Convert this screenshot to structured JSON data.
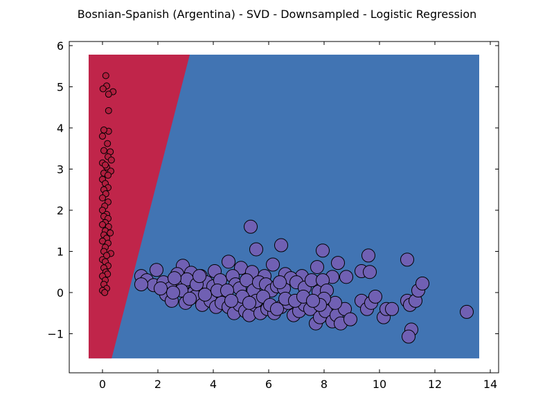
{
  "chart_data": {
    "type": "scatter",
    "title": "Bosnian-Spanish (Argentina) - SVD - Downsampled - Logistic Regression",
    "xlabel": "",
    "ylabel": "",
    "xlim": [
      -1.2,
      14.3
    ],
    "ylim": [
      -1.95,
      6.1
    ],
    "xticks": [
      0,
      2,
      4,
      6,
      8,
      10,
      12,
      14
    ],
    "yticks": [
      -1,
      0,
      1,
      2,
      3,
      4,
      5,
      6
    ],
    "ytick_labels": [
      "−1",
      "0",
      "1",
      "2",
      "3",
      "4",
      "5",
      "6"
    ],
    "grid": false,
    "legend": "none",
    "colors": {
      "region_class_a": "#c0254a",
      "region_class_b": "#4174b3",
      "points_class_a": "#b01e3e",
      "points_class_b": "#7060b3",
      "point_edge": "#000000"
    },
    "decision_regions": {
      "x_range": [
        -0.5,
        13.6
      ],
      "y_range": [
        -1.6,
        5.78
      ],
      "boundary_line": [
        [
          0.33,
          -1.6
        ],
        [
          3.15,
          5.78
        ]
      ]
    },
    "series": [
      {
        "class": "class_a",
        "points": [
          [
            0.12,
            5.27
          ],
          [
            0.15,
            5.02
          ],
          [
            0.38,
            4.88
          ],
          [
            0.22,
            4.82
          ],
          [
            0.02,
            4.95
          ],
          [
            0.22,
            4.42
          ],
          [
            0.22,
            3.92
          ],
          [
            0.05,
            3.95
          ],
          [
            0.0,
            3.8
          ],
          [
            0.18,
            3.62
          ],
          [
            0.28,
            3.42
          ],
          [
            0.05,
            3.45
          ],
          [
            0.2,
            3.3
          ],
          [
            0.32,
            3.22
          ],
          [
            0.0,
            3.15
          ],
          [
            0.15,
            3.05
          ],
          [
            0.1,
            3.1
          ],
          [
            0.3,
            2.95
          ],
          [
            0.05,
            2.9
          ],
          [
            0.2,
            2.85
          ],
          [
            0.0,
            2.75
          ],
          [
            0.1,
            2.65
          ],
          [
            0.2,
            2.55
          ],
          [
            0.05,
            2.5
          ],
          [
            0.12,
            2.4
          ],
          [
            0.0,
            2.3
          ],
          [
            0.2,
            2.2
          ],
          [
            0.08,
            2.1
          ],
          [
            0.0,
            2.0
          ],
          [
            0.15,
            1.9
          ],
          [
            0.05,
            1.85
          ],
          [
            0.2,
            1.8
          ],
          [
            0.1,
            1.7
          ],
          [
            0.0,
            1.65
          ],
          [
            0.22,
            1.6
          ],
          [
            0.1,
            1.5
          ],
          [
            0.28,
            1.45
          ],
          [
            0.05,
            1.4
          ],
          [
            0.15,
            1.32
          ],
          [
            0.0,
            1.25
          ],
          [
            0.2,
            1.2
          ],
          [
            0.1,
            1.1
          ],
          [
            0.05,
            1.0
          ],
          [
            0.3,
            0.95
          ],
          [
            0.15,
            0.9
          ],
          [
            0.0,
            0.8
          ],
          [
            0.1,
            0.75
          ],
          [
            0.2,
            0.65
          ],
          [
            0.05,
            0.6
          ],
          [
            0.12,
            0.5
          ],
          [
            0.18,
            0.45
          ],
          [
            0.0,
            0.4
          ],
          [
            0.1,
            0.3
          ],
          [
            0.05,
            0.2
          ],
          [
            0.15,
            0.1
          ],
          [
            0.0,
            0.05
          ],
          [
            0.08,
            0.0
          ]
        ]
      },
      {
        "class": "class_b",
        "points": [
          [
            5.35,
            1.6
          ],
          [
            6.45,
            1.15
          ],
          [
            5.55,
            1.05
          ],
          [
            7.95,
            1.02
          ],
          [
            9.6,
            0.9
          ],
          [
            11.0,
            0.8
          ],
          [
            8.5,
            0.72
          ],
          [
            4.55,
            0.75
          ],
          [
            6.15,
            0.68
          ],
          [
            7.75,
            0.62
          ],
          [
            2.9,
            0.65
          ],
          [
            1.95,
            0.55
          ],
          [
            4.05,
            0.52
          ],
          [
            9.35,
            0.52
          ],
          [
            9.65,
            0.5
          ],
          [
            3.2,
            0.48
          ],
          [
            5.0,
            0.6
          ],
          [
            5.4,
            0.5
          ],
          [
            5.85,
            0.4
          ],
          [
            6.6,
            0.45
          ],
          [
            7.2,
            0.4
          ],
          [
            8.3,
            0.38
          ],
          [
            8.8,
            0.38
          ],
          [
            1.4,
            0.4
          ],
          [
            1.6,
            0.3
          ],
          [
            1.85,
            0.18
          ],
          [
            2.2,
            0.25
          ],
          [
            2.45,
            0.1
          ],
          [
            2.7,
            0.45
          ],
          [
            2.9,
            0.2
          ],
          [
            3.05,
            0.32
          ],
          [
            3.3,
            0.0
          ],
          [
            3.55,
            0.4
          ],
          [
            3.75,
            0.25
          ],
          [
            4.0,
            0.15
          ],
          [
            4.25,
            0.3
          ],
          [
            4.4,
            -0.1
          ],
          [
            4.7,
            0.4
          ],
          [
            4.8,
            0.2
          ],
          [
            4.95,
            0.1
          ],
          [
            5.2,
            0.3
          ],
          [
            5.45,
            0.05
          ],
          [
            5.65,
            0.25
          ],
          [
            5.9,
            0.2
          ],
          [
            6.1,
            0.05
          ],
          [
            6.3,
            0.15
          ],
          [
            6.55,
            0.1
          ],
          [
            6.8,
            0.35
          ],
          [
            7.0,
            0.25
          ],
          [
            7.3,
            0.12
          ],
          [
            7.55,
            0.3
          ],
          [
            7.8,
            0.02
          ],
          [
            7.95,
            0.3
          ],
          [
            8.1,
            0.05
          ],
          [
            1.4,
            0.2
          ],
          [
            2.3,
            -0.05
          ],
          [
            2.5,
            -0.2
          ],
          [
            3.0,
            -0.25
          ],
          [
            3.35,
            -0.1
          ],
          [
            3.6,
            -0.3
          ],
          [
            3.9,
            -0.2
          ],
          [
            4.1,
            -0.35
          ],
          [
            4.3,
            -0.25
          ],
          [
            4.55,
            -0.35
          ],
          [
            4.75,
            -0.5
          ],
          [
            4.95,
            -0.3
          ],
          [
            5.15,
            -0.45
          ],
          [
            5.3,
            -0.55
          ],
          [
            5.5,
            -0.3
          ],
          [
            5.7,
            -0.5
          ],
          [
            5.95,
            -0.4
          ],
          [
            6.2,
            -0.5
          ],
          [
            6.45,
            -0.35
          ],
          [
            6.7,
            -0.25
          ],
          [
            6.9,
            -0.55
          ],
          [
            7.1,
            -0.45
          ],
          [
            7.3,
            -0.3
          ],
          [
            7.5,
            -0.4
          ],
          [
            7.7,
            -0.75
          ],
          [
            7.85,
            -0.6
          ],
          [
            8.05,
            -0.45
          ],
          [
            8.3,
            -0.7
          ],
          [
            8.45,
            -0.55
          ],
          [
            8.6,
            -0.75
          ],
          [
            8.75,
            -0.4
          ],
          [
            8.95,
            -0.65
          ],
          [
            8.4,
            -0.25
          ],
          [
            8.0,
            -0.15
          ],
          [
            7.85,
            -0.3
          ],
          [
            9.35,
            -0.2
          ],
          [
            9.55,
            -0.4
          ],
          [
            9.7,
            -0.25
          ],
          [
            9.85,
            -0.1
          ],
          [
            10.15,
            -0.6
          ],
          [
            10.25,
            -0.4
          ],
          [
            10.45,
            -0.4
          ],
          [
            11.0,
            -0.2
          ],
          [
            11.1,
            -0.3
          ],
          [
            11.3,
            -0.2
          ],
          [
            11.4,
            0.05
          ],
          [
            11.55,
            0.22
          ],
          [
            11.15,
            -0.9
          ],
          [
            11.05,
            -1.07
          ],
          [
            13.15,
            -0.47
          ],
          [
            2.85,
            0.05
          ],
          [
            3.4,
            0.2
          ],
          [
            3.7,
            -0.05
          ],
          [
            4.15,
            0.05
          ],
          [
            4.5,
            0.05
          ],
          [
            5.05,
            -0.1
          ],
          [
            5.55,
            -0.2
          ],
          [
            5.8,
            -0.1
          ],
          [
            6.05,
            -0.3
          ],
          [
            6.3,
            -0.4
          ],
          [
            6.6,
            -0.15
          ],
          [
            6.95,
            -0.2
          ],
          [
            7.25,
            -0.1
          ],
          [
            7.6,
            -0.2
          ],
          [
            2.1,
            0.1
          ],
          [
            2.55,
            0.0
          ],
          [
            3.15,
            -0.15
          ],
          [
            4.65,
            -0.2
          ],
          [
            5.3,
            -0.25
          ],
          [
            6.4,
            0.25
          ],
          [
            2.6,
            0.35
          ],
          [
            3.5,
            0.4
          ]
        ]
      }
    ]
  }
}
